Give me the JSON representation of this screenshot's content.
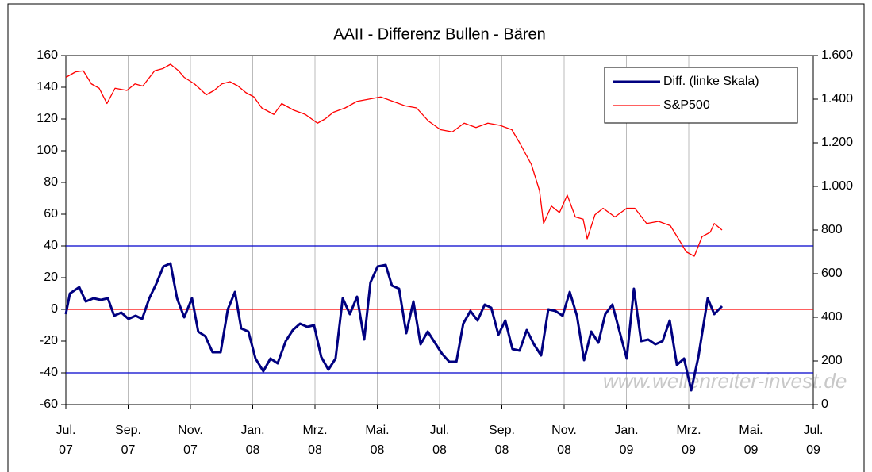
{
  "chart_data": {
    "type": "line",
    "title": "AAII - Differenz Bullen - Bären",
    "annotation": "www.wellenreiter-invest.de",
    "xlim": [
      0,
      24
    ],
    "xticks": [
      {
        "value": 0,
        "label": "Jul.\n07"
      },
      {
        "value": 2,
        "label": "Sep.\n07"
      },
      {
        "value": 4,
        "label": "Nov.\n07"
      },
      {
        "value": 6,
        "label": "Jan.\n08"
      },
      {
        "value": 8,
        "label": "Mrz.\n08"
      },
      {
        "value": 10,
        "label": "Mai.\n08"
      },
      {
        "value": 12,
        "label": "Jul.\n08"
      },
      {
        "value": 14,
        "label": "Sep.\n08"
      },
      {
        "value": 16,
        "label": "Nov.\n08"
      },
      {
        "value": 18,
        "label": "Jan.\n09"
      },
      {
        "value": 20,
        "label": "Mrz.\n09"
      },
      {
        "value": 22,
        "label": "Mai.\n09"
      },
      {
        "value": 24,
        "label": "Jul.\n09"
      }
    ],
    "ylim": [
      -60,
      160
    ],
    "yticks": [
      -60,
      -40,
      -20,
      0,
      20,
      40,
      60,
      80,
      100,
      120,
      140,
      160
    ],
    "y2lim": [
      0,
      1600
    ],
    "y2ticks": [
      0,
      200,
      400,
      600,
      800,
      {
        "value": 1000,
        "label": "1.000"
      },
      {
        "value": 1200,
        "label": "1.200"
      },
      {
        "value": 1400,
        "label": "1.400"
      },
      {
        "value": 1600,
        "label": "1.600"
      }
    ],
    "grid": "x",
    "legend": "top-right",
    "reference_lines": [
      {
        "value": 40,
        "color": "#0000cc"
      },
      {
        "value": 0,
        "color": "#ff0000"
      },
      {
        "value": -40,
        "color": "#0000cc"
      }
    ],
    "series": [
      {
        "name": "Diff. (linke Skala)",
        "color": "#000080",
        "width": 3,
        "x": [
          0,
          0.13,
          0.43,
          0.64,
          0.89,
          1.12,
          1.35,
          1.55,
          1.78,
          2.01,
          2.24,
          2.45,
          2.68,
          2.9,
          3.13,
          3.36,
          3.57,
          3.8,
          4.05,
          4.25,
          4.48,
          4.71,
          4.97,
          5.2,
          5.43,
          5.63,
          5.86,
          6.09,
          6.34,
          6.57,
          6.8,
          7.06,
          7.29,
          7.52,
          7.75,
          7.97,
          8.2,
          8.43,
          8.66,
          8.89,
          9.12,
          9.35,
          9.58,
          9.78,
          10.01,
          10.27,
          10.47,
          10.7,
          10.93,
          11.16,
          11.39,
          11.62,
          11.85,
          12.08,
          12.31,
          12.54,
          12.76,
          12.99,
          13.22,
          13.45,
          13.66,
          13.89,
          14.11,
          14.34,
          14.57,
          14.8,
          15.03,
          15.26,
          15.49,
          15.72,
          15.95,
          16.18,
          16.41,
          16.64,
          16.87,
          17.1,
          17.32,
          17.55,
          17.78,
          18.01,
          18.24,
          18.47,
          18.7,
          18.93,
          19.16,
          19.39,
          19.62,
          19.85,
          20.08,
          20.31,
          20.61,
          20.82,
          21.07
        ],
        "values": [
          -3,
          10,
          14,
          5,
          7,
          6,
          7,
          -4,
          -2,
          -6,
          -4,
          -6,
          7,
          16,
          27,
          29,
          7,
          -5,
          7,
          -14,
          -17,
          -27,
          -27,
          0,
          11,
          -12,
          -14,
          -31,
          -39,
          -31,
          -34,
          -20,
          -13,
          -9,
          -11,
          -10,
          -30,
          -38,
          -31,
          7,
          -3,
          8,
          -19,
          17,
          27,
          28,
          15,
          13,
          -15,
          5,
          -22,
          -14,
          -21,
          -28,
          -33,
          -33,
          -9,
          -1,
          -7,
          3,
          1,
          -16,
          -7,
          -25,
          -26,
          -13,
          -22,
          -29,
          0,
          -1,
          -4,
          11,
          -4,
          -32,
          -14,
          -21,
          -3,
          3,
          -14,
          -31,
          13,
          -20,
          -19,
          -22,
          -20,
          -7,
          -35,
          -31,
          -51,
          -30,
          7,
          -3,
          2
        ]
      },
      {
        "name": "S&P500",
        "color": "#ff0000",
        "width": 1.3,
        "axis": "y2",
        "x": [
          0,
          0.31,
          0.56,
          0.82,
          1.07,
          1.32,
          1.58,
          1.96,
          2.22,
          2.47,
          2.85,
          3.11,
          3.36,
          3.62,
          3.8,
          4.13,
          4.51,
          4.76,
          5.01,
          5.27,
          5.53,
          5.78,
          6.04,
          6.29,
          6.68,
          6.93,
          7.31,
          7.69,
          8.08,
          8.33,
          8.59,
          8.97,
          9.35,
          9.73,
          10.11,
          10.5,
          10.88,
          11.26,
          11.64,
          12.03,
          12.41,
          12.79,
          13.17,
          13.55,
          13.94,
          14.32,
          14.57,
          14.95,
          15.21,
          15.34,
          15.59,
          15.85,
          16.1,
          16.36,
          16.61,
          16.74,
          16.99,
          17.25,
          17.63,
          18.01,
          18.27,
          18.65,
          19.03,
          19.41,
          19.67,
          19.92,
          20.18,
          20.43,
          20.69,
          20.82,
          21.07
        ],
        "values": [
          1500,
          1525,
          1530,
          1470,
          1450,
          1380,
          1450,
          1440,
          1470,
          1460,
          1530,
          1540,
          1560,
          1530,
          1500,
          1470,
          1420,
          1440,
          1470,
          1480,
          1460,
          1430,
          1410,
          1360,
          1330,
          1380,
          1350,
          1330,
          1290,
          1310,
          1340,
          1360,
          1390,
          1400,
          1410,
          1390,
          1370,
          1360,
          1300,
          1260,
          1250,
          1290,
          1270,
          1290,
          1280,
          1260,
          1200,
          1100,
          980,
          830,
          910,
          880,
          960,
          860,
          850,
          760,
          870,
          900,
          860,
          900,
          900,
          830,
          840,
          820,
          760,
          700,
          680,
          770,
          790,
          830,
          800
        ]
      }
    ]
  }
}
